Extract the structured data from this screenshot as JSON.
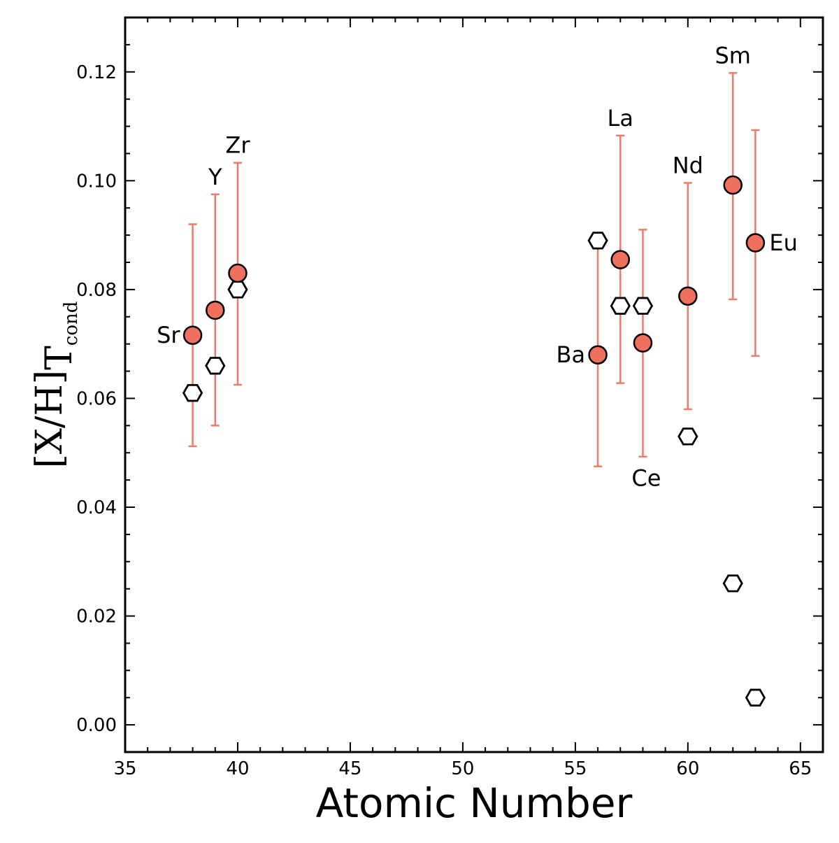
{
  "chart_data": {
    "type": "scatter",
    "xlabel": "Atomic Number",
    "ylabel": {
      "main": "[X/H]",
      "subscript": "T",
      "sub_subscript": "cond"
    },
    "xlim": [
      35,
      66
    ],
    "ylim": [
      -0.005,
      0.13
    ],
    "xticks": [
      35,
      40,
      45,
      50,
      55,
      60,
      65
    ],
    "yticks": [
      0.0,
      0.02,
      0.04,
      0.06,
      0.08,
      0.1,
      0.12
    ],
    "ytick_labels": [
      "0.00",
      "0.02",
      "0.04",
      "0.06",
      "0.08",
      "0.10",
      "0.12"
    ],
    "grid": false,
    "colors": {
      "filled": "#f07060",
      "errorbar": "#ee7a68",
      "edge": "#000000"
    },
    "series": [
      {
        "marker": "circle-filled",
        "points": [
          {
            "element": "Sr",
            "x": 38,
            "y": 0.0716,
            "ylow": 0.0512,
            "yhigh": 0.092
          },
          {
            "element": "Y",
            "x": 39,
            "y": 0.0762,
            "ylow": 0.055,
            "yhigh": 0.0975
          },
          {
            "element": "Zr",
            "x": 40,
            "y": 0.083,
            "ylow": 0.0625,
            "yhigh": 0.1033
          },
          {
            "element": "Ba",
            "x": 56,
            "y": 0.068,
            "ylow": 0.0475,
            "yhigh": 0.0885
          },
          {
            "element": "La",
            "x": 57,
            "y": 0.0855,
            "ylow": 0.0628,
            "yhigh": 0.1083
          },
          {
            "element": "Ce",
            "x": 58,
            "y": 0.0702,
            "ylow": 0.0493,
            "yhigh": 0.091
          },
          {
            "element": "Nd",
            "x": 60,
            "y": 0.0788,
            "ylow": 0.058,
            "yhigh": 0.0996
          },
          {
            "element": "Sm",
            "x": 62,
            "y": 0.0992,
            "ylow": 0.0782,
            "yhigh": 0.1198
          },
          {
            "element": "Eu",
            "x": 63,
            "y": 0.0886,
            "ylow": 0.0678,
            "yhigh": 0.1093
          }
        ]
      },
      {
        "marker": "hexagon-open",
        "points": [
          {
            "x": 38,
            "y": 0.061
          },
          {
            "x": 39,
            "y": 0.066
          },
          {
            "x": 40,
            "y": 0.08
          },
          {
            "x": 56,
            "y": 0.089
          },
          {
            "x": 57,
            "y": 0.077
          },
          {
            "x": 58,
            "y": 0.077
          },
          {
            "x": 60,
            "y": 0.053
          },
          {
            "x": 62,
            "y": 0.026
          },
          {
            "x": 63,
            "y": 0.005
          }
        ]
      }
    ],
    "annotations": [
      {
        "text": "Sr",
        "x": 38,
        "y": 0.0716,
        "position": "left"
      },
      {
        "text": "Y",
        "x": 39,
        "y": 0.0975,
        "position": "above"
      },
      {
        "text": "Zr",
        "x": 40,
        "y": 0.1033,
        "position": "above"
      },
      {
        "text": "Ba",
        "x": 56,
        "y": 0.068,
        "position": "left"
      },
      {
        "text": "La",
        "x": 57,
        "y": 0.1083,
        "position": "above"
      },
      {
        "text": "Ce",
        "x": 58,
        "y": 0.0493,
        "position": "below"
      },
      {
        "text": "Nd",
        "x": 60,
        "y": 0.0996,
        "position": "above"
      },
      {
        "text": "Sm",
        "x": 62,
        "y": 0.1198,
        "position": "above"
      },
      {
        "text": "Eu",
        "x": 63,
        "y": 0.0886,
        "position": "right"
      }
    ]
  }
}
